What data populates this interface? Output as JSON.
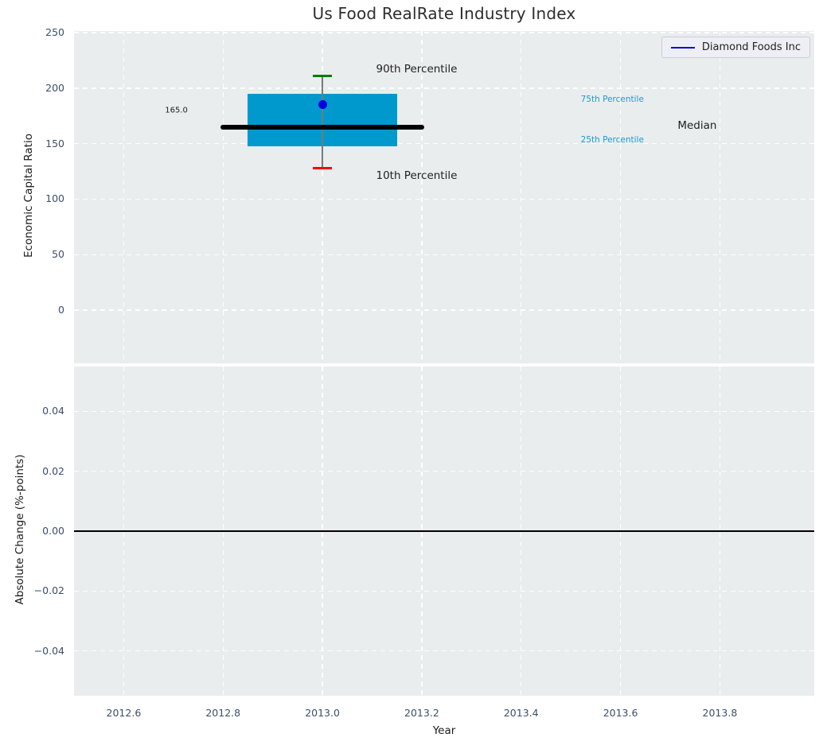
{
  "legend": {
    "label": "Diamond Foods Inc",
    "line_color": "#0000dd"
  },
  "colors": {
    "figure_bg": "#ffffff",
    "plot_bg": "#e9edee",
    "grid": "#ffffff",
    "tick_label": "#3d4e68",
    "axis_label": "#1a1a1a",
    "title": "#2e2e2e",
    "zero_line": "#000000"
  },
  "chart_data": [
    {
      "type": "boxplot",
      "title": "Us Food RealRate Industry Index",
      "ylabel": "Economic Capital Ratio",
      "xlim": [
        2012.5,
        2013.99
      ],
      "ylim": [
        -48,
        251.5
      ],
      "xticks": [
        2012.6,
        2012.8,
        2013.0,
        2013.2,
        2013.4,
        2013.6,
        2013.8
      ],
      "xtick_labels": [
        "2012.6",
        "2012.8",
        "2013.0",
        "2013.2",
        "2013.4",
        "2013.6",
        "2013.8"
      ],
      "yticks": [
        0,
        50,
        100,
        150,
        200,
        250
      ],
      "ytick_labels": [
        "0",
        "50",
        "100",
        "150",
        "200",
        "250"
      ],
      "grid": true,
      "legend_position": "upper right",
      "box": {
        "x": 2013.0,
        "median": 165.0,
        "median_label": "165.0",
        "p75": 195,
        "p25": 147.5,
        "p90": 211,
        "p10": 128,
        "box_half_width": 0.15,
        "median_half_width": 0.205,
        "cap_half_width": 0.019,
        "box_color": "#0099cd",
        "median_color": "#000000",
        "whisker_color": "#7a7a7a",
        "p90_color": "#007d00",
        "p10_color": "#ff0000"
      },
      "series": [
        {
          "name": "Diamond Foods Inc",
          "x": 2013.0,
          "y": 185.5,
          "color": "#0000dd",
          "marker": "circle"
        }
      ],
      "annotations": [
        {
          "text": "90th Percentile",
          "x": 2013.108,
          "y": 217,
          "size": 13.5,
          "color": "#1f1f1f"
        },
        {
          "text": "10th Percentile",
          "x": 2013.108,
          "y": 121,
          "size": 13.5,
          "color": "#1f1f1f"
        },
        {
          "text": "75th Percentile",
          "x": 2013.52,
          "y": 190,
          "size": 10.5,
          "color": "#1b9cd0"
        },
        {
          "text": "25th Percentile",
          "x": 2013.52,
          "y": 153,
          "size": 10.5,
          "color": "#1b9cd0"
        },
        {
          "text": "Median",
          "x": 2013.715,
          "y": 166,
          "size": 13.5,
          "color": "#1f1f1f"
        },
        {
          "text": "165.0",
          "x": 2012.683,
          "y": 180,
          "size": 10,
          "color": "#1f1f1f"
        }
      ]
    },
    {
      "type": "line",
      "xlabel": "Year",
      "ylabel": "Absolute Change (%-points)",
      "xlim": [
        2012.5,
        2013.99
      ],
      "ylim": [
        -0.055,
        0.055
      ],
      "xticks": [
        2012.6,
        2012.8,
        2013.0,
        2013.2,
        2013.4,
        2013.6,
        2013.8
      ],
      "xtick_labels": [
        "2012.6",
        "2012.8",
        "2013.0",
        "2013.2",
        "2013.4",
        "2013.6",
        "2013.8"
      ],
      "yticks": [
        0.04,
        0.02,
        0.0,
        -0.02,
        -0.04
      ],
      "ytick_labels": [
        "0.04",
        "0.02",
        "0.00",
        "−0.02",
        "−0.04"
      ],
      "grid": true,
      "zero_line": 0.0,
      "series": []
    }
  ]
}
